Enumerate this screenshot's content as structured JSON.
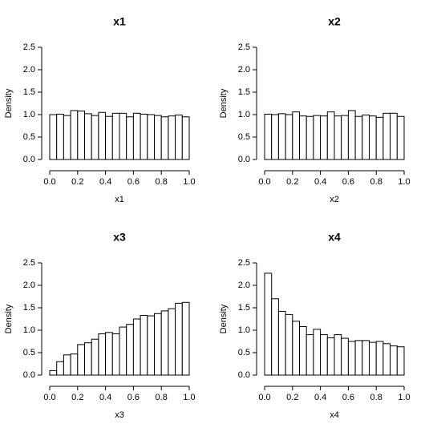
{
  "chart_data": [
    {
      "type": "histogram",
      "title": "x1",
      "x_label": "x1",
      "y_label": "Density",
      "bins": [
        0,
        0.05,
        0.1,
        0.15,
        0.2,
        0.25,
        0.3,
        0.35,
        0.4,
        0.45,
        0.5,
        0.55,
        0.6,
        0.65,
        0.7,
        0.75,
        0.8,
        0.85,
        0.9,
        0.95,
        1
      ],
      "values": [
        1.0,
        1.01,
        0.98,
        1.09,
        1.08,
        1.02,
        0.98,
        1.05,
        0.96,
        1.03,
        1.03,
        0.95,
        1.03,
        1.01,
        1.0,
        0.98,
        0.95,
        0.97,
        0.99,
        0.95
      ],
      "color": "#ffffff",
      "xlim": [
        0,
        1
      ],
      "ylim": [
        0,
        2.5
      ],
      "xticks": [
        {
          "value": 0,
          "label": "0.0"
        },
        0.2,
        0.4,
        0.6,
        0.8,
        {
          "value": 1,
          "label": "1.0"
        }
      ],
      "yticks": [
        {
          "value": 0,
          "label": "0.0"
        },
        0.5,
        {
          "value": 1,
          "label": "1.0"
        },
        1.5,
        {
          "value": 2,
          "label": "2.0"
        },
        2.5
      ]
    },
    {
      "type": "histogram",
      "title": "x2",
      "x_label": "x2",
      "y_label": "Density",
      "bins": [
        0,
        0.05,
        0.1,
        0.15,
        0.2,
        0.25,
        0.3,
        0.35,
        0.4,
        0.45,
        0.5,
        0.55,
        0.6,
        0.65,
        0.7,
        0.75,
        0.8,
        0.85,
        0.9,
        0.95,
        1
      ],
      "values": [
        1.01,
        1.0,
        1.02,
        1.0,
        1.06,
        0.97,
        0.96,
        0.98,
        0.97,
        1.06,
        0.97,
        0.98,
        1.09,
        0.96,
        0.99,
        0.97,
        0.94,
        1.03,
        1.03,
        0.96
      ],
      "color": "#ffffff",
      "xlim": [
        0,
        1
      ],
      "ylim": [
        0,
        2.5
      ],
      "xticks": [
        {
          "value": 0,
          "label": "0.0"
        },
        0.2,
        0.4,
        0.6,
        0.8,
        {
          "value": 1,
          "label": "1.0"
        }
      ],
      "yticks": [
        {
          "value": 0,
          "label": "0.0"
        },
        0.5,
        {
          "value": 1,
          "label": "1.0"
        },
        1.5,
        {
          "value": 2,
          "label": "2.0"
        },
        2.5
      ]
    },
    {
      "type": "histogram",
      "title": "x3",
      "x_label": "x3",
      "y_label": "Density",
      "bins": [
        0,
        0.05,
        0.1,
        0.15,
        0.2,
        0.25,
        0.3,
        0.35,
        0.4,
        0.45,
        0.5,
        0.55,
        0.6,
        0.65,
        0.7,
        0.75,
        0.8,
        0.85,
        0.9,
        0.95,
        1
      ],
      "values": [
        0.1,
        0.3,
        0.45,
        0.47,
        0.68,
        0.72,
        0.8,
        0.92,
        0.95,
        0.92,
        1.07,
        1.13,
        1.25,
        1.33,
        1.32,
        1.37,
        1.43,
        1.48,
        1.6,
        1.62
      ],
      "color": "#ffffff",
      "xlim": [
        0,
        1
      ],
      "ylim": [
        0,
        2.5
      ],
      "xticks": [
        {
          "value": 0,
          "label": "0.0"
        },
        0.2,
        0.4,
        0.6,
        0.8,
        {
          "value": 1,
          "label": "1.0"
        }
      ],
      "yticks": [
        {
          "value": 0,
          "label": "0.0"
        },
        0.5,
        {
          "value": 1,
          "label": "1.0"
        },
        1.5,
        {
          "value": 2,
          "label": "2.0"
        },
        2.5
      ]
    },
    {
      "type": "histogram",
      "title": "x4",
      "x_label": "x4",
      "y_label": "Density",
      "bins": [
        0,
        0.05,
        0.1,
        0.15,
        0.2,
        0.25,
        0.3,
        0.35,
        0.4,
        0.45,
        0.5,
        0.55,
        0.6,
        0.65,
        0.7,
        0.75,
        0.8,
        0.85,
        0.9,
        0.95,
        1
      ],
      "values": [
        2.27,
        1.7,
        1.42,
        1.35,
        1.2,
        1.08,
        0.9,
        1.02,
        0.9,
        0.83,
        0.9,
        0.82,
        0.75,
        0.77,
        0.77,
        0.73,
        0.75,
        0.7,
        0.65,
        0.63
      ],
      "color": "#ffffff",
      "xlim": [
        0,
        1
      ],
      "ylim": [
        0,
        2.5
      ],
      "xticks": [
        {
          "value": 0,
          "label": "0.0"
        },
        0.2,
        0.4,
        0.6,
        0.8,
        {
          "value": 1,
          "label": "1.0"
        }
      ],
      "yticks": [
        {
          "value": 0,
          "label": "0.0"
        },
        0.5,
        {
          "value": 1,
          "label": "1.0"
        },
        1.5,
        {
          "value": 2,
          "label": "2.0"
        },
        2.5
      ]
    }
  ]
}
